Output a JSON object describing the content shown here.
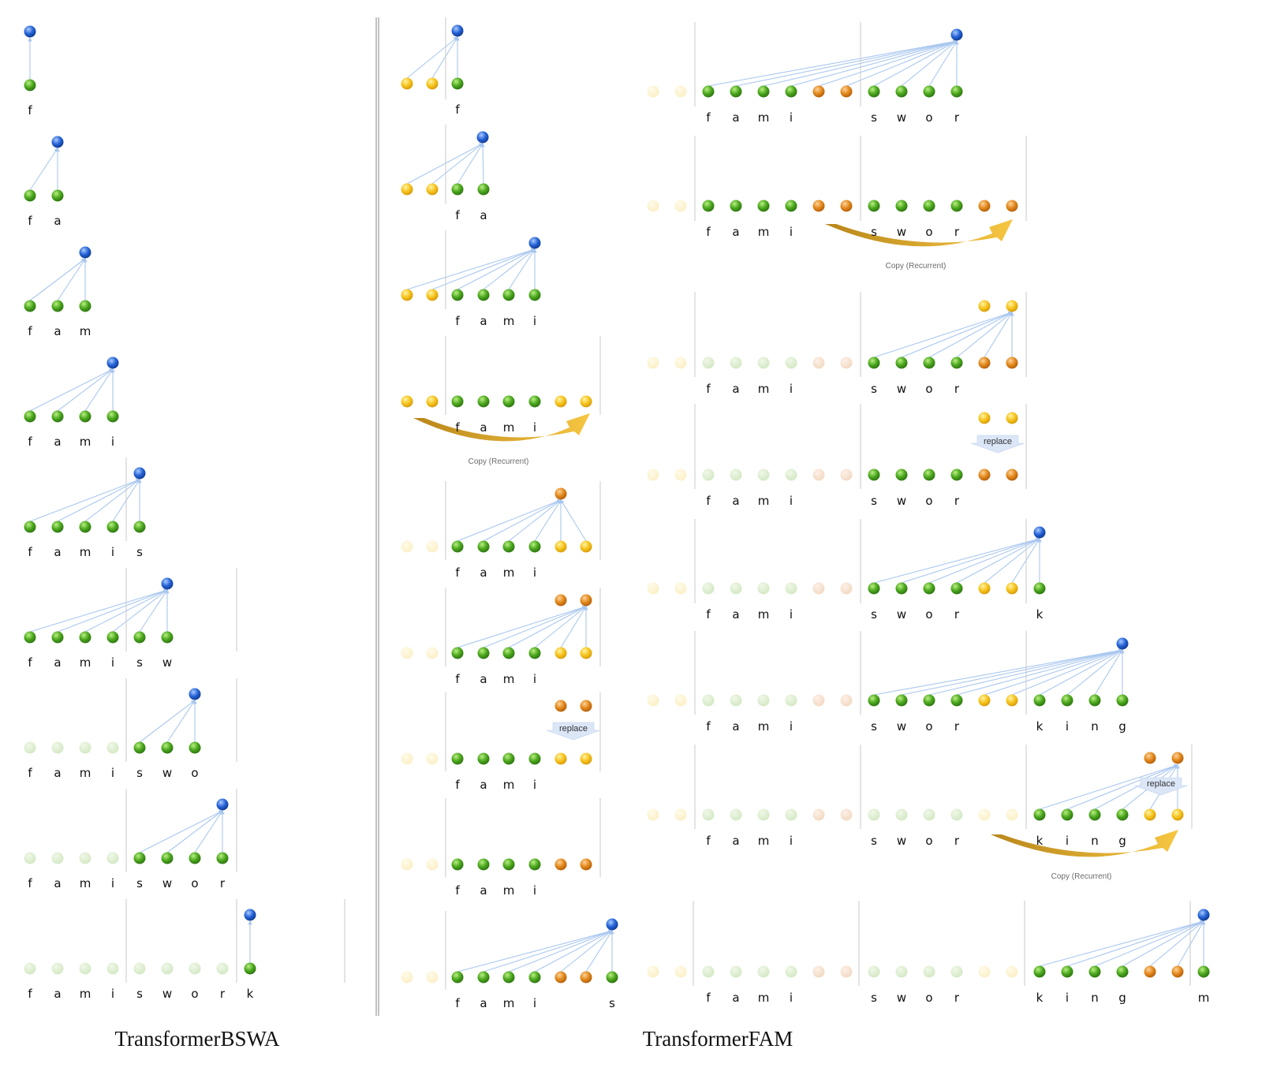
{
  "left_caption": "TransformerBSWA",
  "right_caption": "TransformerFAM",
  "copy_label": "Copy (Recurrent)",
  "replace_label": "replace",
  "colors": {
    "input": "#43a018",
    "query": "#1f5fd0",
    "fam_yellow": "#f2c21b",
    "fam_orange": "#e08a1e",
    "edge": "#a9c7ef",
    "block_divider": "#c9c9c9",
    "column_divider": "#9a9a9a",
    "copy_arrow": "#e0a526"
  }
}
